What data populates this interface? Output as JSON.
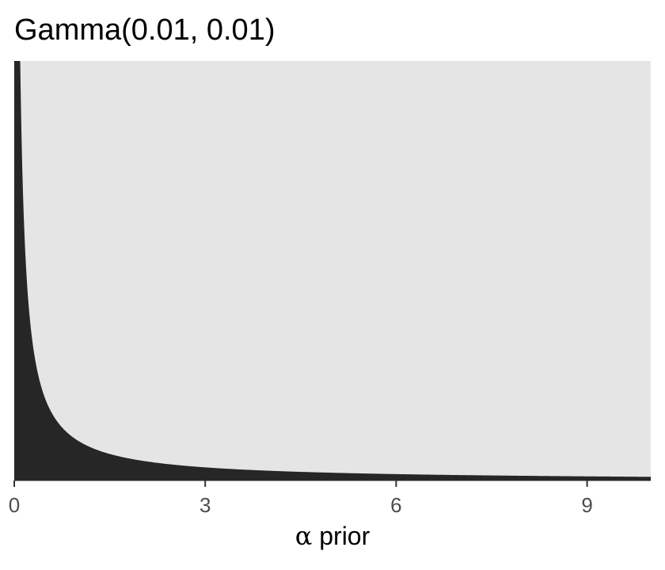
{
  "chart_data": {
    "type": "area",
    "title": "Gamma(0.01, 0.01)",
    "xlabel_symbol": "α",
    "xlabel_text": " prior",
    "ylabel": "",
    "distribution": {
      "family": "Gamma",
      "shape": 0.01,
      "rate": 0.01
    },
    "x_ticks": [
      0,
      3,
      6,
      9
    ],
    "x_tick_labels": [
      "0",
      "3",
      "6",
      "9"
    ],
    "xlim": [
      0,
      10
    ],
    "ylim": [
      0,
      0.1
    ],
    "y_axis_visible": false,
    "grid": false,
    "panel_color": "#e5e5e5",
    "fill_color": "#262626",
    "legend": "none"
  }
}
